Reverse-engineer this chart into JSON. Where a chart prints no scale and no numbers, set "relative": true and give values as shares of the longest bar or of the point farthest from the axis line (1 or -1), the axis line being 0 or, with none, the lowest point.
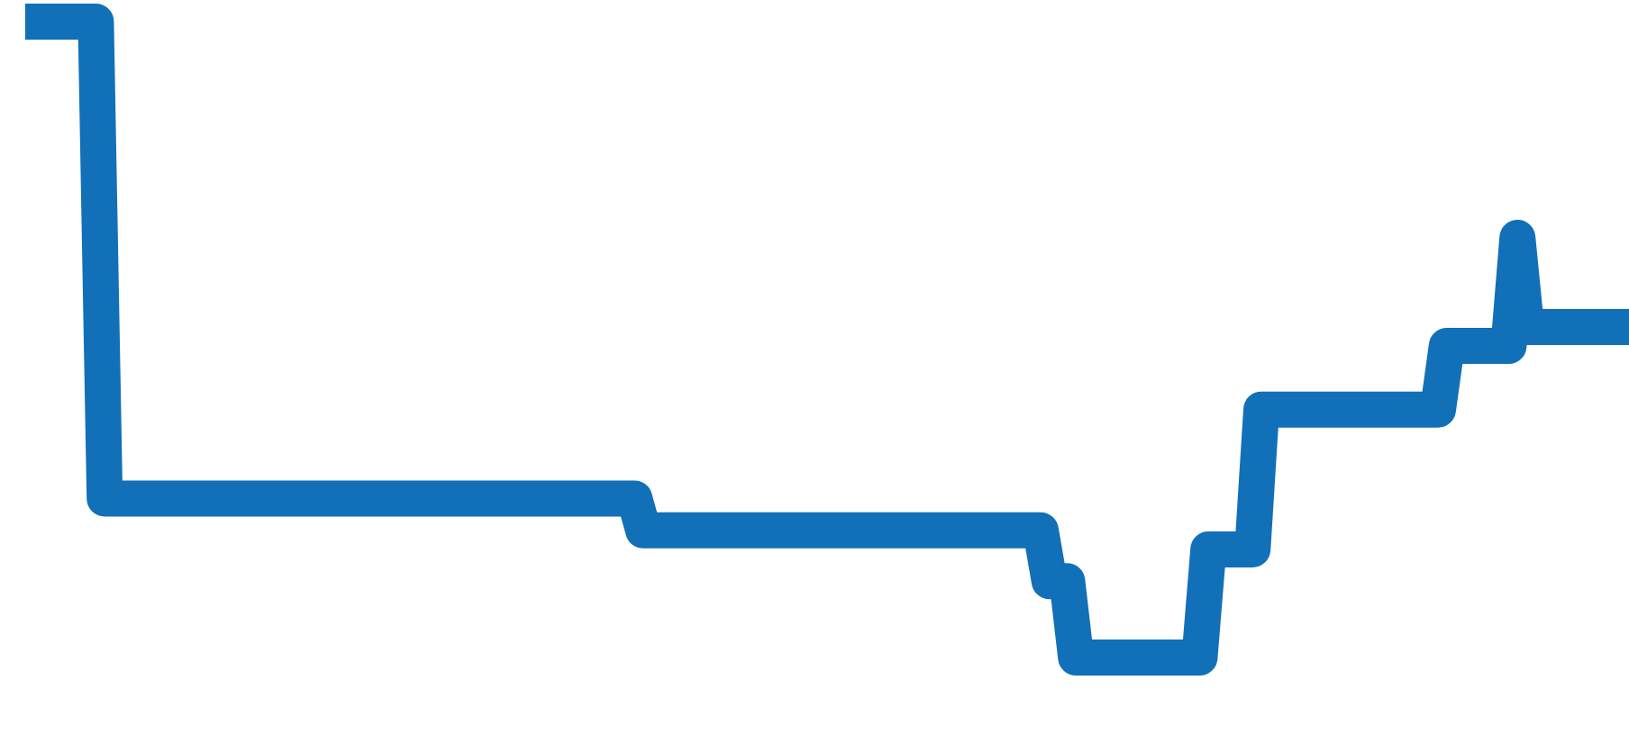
{
  "chart_data": {
    "type": "line",
    "relative": true,
    "categories": [
      null,
      null,
      null,
      null,
      null,
      null,
      null,
      null,
      null,
      null,
      null,
      null,
      null,
      null,
      null,
      null,
      null,
      null,
      null,
      null,
      null,
      null,
      null,
      null,
      null,
      null,
      null,
      null,
      null,
      null,
      null,
      null,
      null,
      null,
      null,
      null,
      null,
      null,
      null,
      null,
      null,
      null,
      null,
      null,
      null,
      null,
      null,
      null,
      null,
      null,
      null,
      null,
      null,
      null,
      null,
      null,
      null,
      null,
      null,
      null,
      null,
      null,
      null,
      null,
      null,
      null,
      null,
      null,
      null,
      null,
      null,
      null,
      null,
      null,
      null,
      null,
      null,
      null,
      null,
      null,
      null,
      null,
      null,
      null,
      null,
      null,
      null,
      null,
      null,
      null,
      null,
      null,
      null,
      null,
      null,
      null,
      null,
      null,
      null,
      null,
      null,
      null,
      null,
      null,
      null,
      null,
      null,
      null,
      null,
      null,
      null,
      null,
      null,
      null,
      null,
      null,
      null,
      null,
      null,
      null,
      null,
      null,
      null,
      null,
      null,
      null,
      null,
      null,
      null,
      null,
      null,
      null,
      null,
      null,
      null,
      null,
      null,
      null,
      null,
      null,
      null,
      null,
      null,
      null,
      null,
      null,
      null,
      null,
      null,
      null,
      null,
      null,
      null,
      null,
      null,
      null,
      null,
      null,
      null,
      null,
      null,
      null,
      null,
      null,
      null,
      null,
      null,
      null,
      null,
      null,
      null,
      null,
      null,
      null,
      null,
      null,
      null,
      null,
      null,
      null,
      null,
      null,
      null
    ],
    "series": [
      {
        "color": "#1170b8",
        "values": [
          1,
          1,
          1,
          1,
          1,
          1,
          1,
          1,
          1,
          0.25,
          0.25,
          0.25,
          0.25,
          0.25,
          0.25,
          0.25,
          0.25,
          0.25,
          0.25,
          0.25,
          0.25,
          0.25,
          0.25,
          0.25,
          0.25,
          0.25,
          0.25,
          0.25,
          0.25,
          0.25,
          0.25,
          0.25,
          0.25,
          0.25,
          0.25,
          0.25,
          0.25,
          0.25,
          0.25,
          0.25,
          0.25,
          0.25,
          0.25,
          0.25,
          0.25,
          0.25,
          0.25,
          0.25,
          0.25,
          0.25,
          0.25,
          0.25,
          0.25,
          0.25,
          0.25,
          0.25,
          0.25,
          0.25,
          0.25,
          0.25,
          0.25,
          0.25,
          0.25,
          0.25,
          0.25,
          0.25,
          0.25,
          0.25,
          0.25,
          0.25,
          0.2,
          0.2,
          0.2,
          0.2,
          0.2,
          0.2,
          0.2,
          0.2,
          0.2,
          0.2,
          0.2,
          0.2,
          0.2,
          0.2,
          0.2,
          0.2,
          0.2,
          0.2,
          0.2,
          0.2,
          0.2,
          0.2,
          0.2,
          0.2,
          0.2,
          0.2,
          0.2,
          0.2,
          0.2,
          0.2,
          0.2,
          0.2,
          0.2,
          0.2,
          0.2,
          0.2,
          0.2,
          0.2,
          0.2,
          0.2,
          0.2,
          0.2,
          0.2,
          0.2,
          0.2,
          0.2,
          0.12,
          0.12,
          0.12,
          0,
          0,
          0,
          0,
          0,
          0,
          0,
          0,
          0,
          0,
          0,
          0,
          0,
          0,
          0,
          0.17,
          0.17,
          0.17,
          0.17,
          0.17,
          0.17,
          0.39,
          0.39,
          0.39,
          0.39,
          0.39,
          0.39,
          0.39,
          0.39,
          0.39,
          0.39,
          0.39,
          0.39,
          0.39,
          0.39,
          0.39,
          0.39,
          0.39,
          0.39,
          0.39,
          0.39,
          0.39,
          0.49,
          0.49,
          0.49,
          0.49,
          0.49,
          0.49,
          0.49,
          0.49,
          0.66,
          0.52,
          0.52,
          0.52,
          0.52,
          0.52,
          0.52,
          0.52,
          0.52,
          0.52,
          0.52,
          0.52,
          0.52,
          0.52
        ]
      }
    ]
  }
}
